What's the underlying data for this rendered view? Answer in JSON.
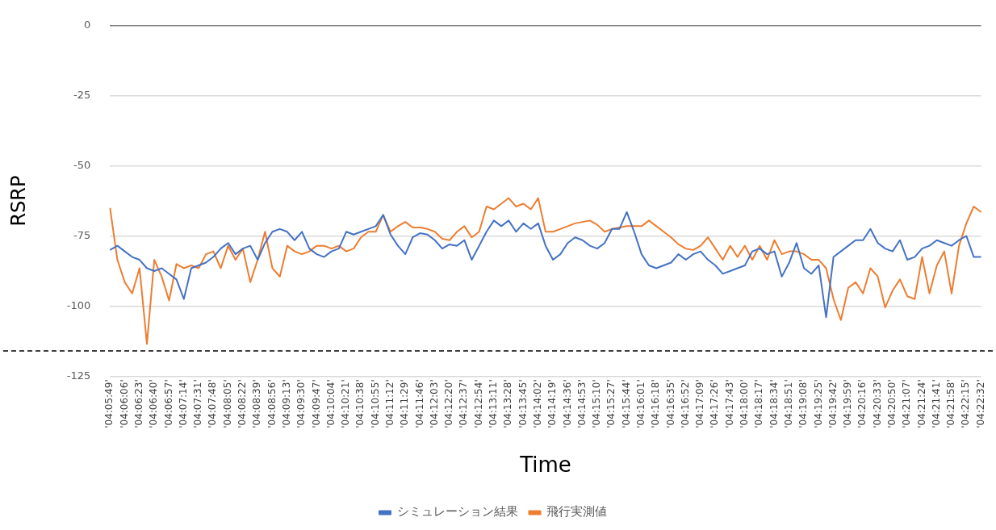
{
  "chart_data": {
    "type": "line",
    "xlabel": "Time",
    "ylabel": "RSRP",
    "categories": [
      "'04:05:49'",
      null,
      "'04:06:06'",
      null,
      "'04:06:23'",
      null,
      "'04:06:40'",
      null,
      "'04:06:57'",
      null,
      "'04:07:14'",
      null,
      "'04:07:31'",
      null,
      "'04:07:48'",
      null,
      "'04:08:05'",
      null,
      "'04:08:22'",
      null,
      "'04:08:39'",
      null,
      "'04:08:56'",
      null,
      "'04:09:13'",
      null,
      "'04:09:30'",
      null,
      "'04:09:47'",
      null,
      "'04:10:04'",
      null,
      "'04:10:21'",
      null,
      "'04:10:38'",
      null,
      "'04:10:55'",
      null,
      "'04:11:12'",
      null,
      "'04:11:29'",
      null,
      "'04:11:46'",
      null,
      "'04:12:03'",
      null,
      "'04:12:20'",
      null,
      "'04:12:37'",
      null,
      "'04:12:54'",
      null,
      "'04:13:11'",
      null,
      "'04:13:28'",
      null,
      "'04:13:45'",
      null,
      "'04:14:02'",
      null,
      "'04:14:19'",
      null,
      "'04:14:36'",
      null,
      "'04:14:53'",
      null,
      "'04:15:10'",
      null,
      "'04:15:27'",
      null,
      "'04:15:44'",
      null,
      "'04:16:01'",
      null,
      "'04:16:18'",
      null,
      "'04:16:35'",
      null,
      "'04:16:52'",
      null,
      "'04:17:09'",
      null,
      "'04:17:26'",
      null,
      "'04:17:43'",
      null,
      "'04:18:00'",
      null,
      "'04:18:17'",
      null,
      "'04:18:34'",
      null,
      "'04:18:51'",
      null,
      "'04:19:08'",
      null,
      "'04:19:25'",
      null,
      "'04:19:42'",
      null,
      "'04:19:59'",
      null,
      "'04:20:16'",
      null,
      "'04:20:33'",
      null,
      "'04:20:50'",
      null,
      "'04:21:07'",
      null,
      "'04:21:24'",
      null,
      "'04:21:41'",
      null,
      "'04:21:58'",
      null,
      "'04:22:15'",
      null,
      "'04:22:32'"
    ],
    "series": [
      {
        "name": "シミュレーション結果",
        "color": "#4472c4",
        "values": [
          -80,
          -78.5,
          -80.5,
          -82.5,
          -83.5,
          -86.5,
          -87.5,
          -86.5,
          -88.5,
          -90.5,
          -97.5,
          -86.5,
          -85.5,
          -84.5,
          -82.5,
          -79.5,
          -77.5,
          -81.5,
          -79.5,
          -78.5,
          -83.5,
          -77.5,
          -73.5,
          -72.5,
          -73.5,
          -76.5,
          -73.5,
          -79.5,
          -81.5,
          -82.5,
          -80.5,
          -79.5,
          -73.5,
          -74.5,
          -73.5,
          -72.5,
          -71.5,
          -67.5,
          -74.5,
          -78.5,
          -81.5,
          -75.5,
          -74,
          -74.5,
          -76.5,
          -79.5,
          -78,
          -78.5,
          -76.5,
          -83.5,
          -78.5,
          -73.5,
          -69.5,
          -71.5,
          -69.5,
          -73.5,
          -70.5,
          -72.5,
          -70.5,
          -78.5,
          -83.5,
          -81.5,
          -77.5,
          -75.5,
          -76.5,
          -78.5,
          -79.5,
          -77.5,
          -72.5,
          -72.5,
          -66.5,
          -73.5,
          -81.5,
          -85.5,
          -86.5,
          -85.5,
          -84.5,
          -81.5,
          -83.5,
          -81.5,
          -80.5,
          -83.5,
          -85.5,
          -88.5,
          -87.5,
          -86.5,
          -85.5,
          -80.5,
          -79.5,
          -81.5,
          -80.5,
          -89.5,
          -84.5,
          -77.5,
          -86.5,
          -88.5,
          -85.5,
          -104,
          -82.5,
          -80.5,
          -78.5,
          -76.5,
          -76.5,
          -72.5,
          -77.5,
          -79.5,
          -80.5,
          -76.5,
          -83.5,
          -82.5,
          -79.5,
          -78.5,
          -76.5,
          -77.5,
          -78.5,
          -76.5,
          -75,
          -82.5,
          -82.5
        ]
      },
      {
        "name": "飛行実測値",
        "color": "#ed7d31",
        "values": [
          -65,
          -83.5,
          -91.5,
          -95.5,
          -86.5,
          -113.5,
          -83.5,
          -89.5,
          -98,
          -85,
          -86.5,
          -85.5,
          -86.5,
          -81.5,
          -80.5,
          -86.5,
          -78.5,
          -83.5,
          -79.5,
          -91.5,
          -83.5,
          -73.5,
          -86.5,
          -89.5,
          -78.5,
          -80.5,
          -81.5,
          -80.5,
          -78.5,
          -78.5,
          -79.5,
          -78.5,
          -80.5,
          -79.5,
          -75.5,
          -73.5,
          -73.5,
          -67.5,
          -73.5,
          -71.5,
          -70,
          -72,
          -72,
          -72.5,
          -73.5,
          -76,
          -76.5,
          -73.5,
          -71.5,
          -75.5,
          -73.5,
          -64.5,
          -65.5,
          -63.5,
          -61.5,
          -64.5,
          -63.5,
          -65.5,
          -61.5,
          -73.5,
          -73.5,
          -72.5,
          -71.5,
          -70.5,
          -70,
          -69.5,
          -71,
          -73.5,
          -72.5,
          -72,
          -71.5,
          -71.5,
          -71.5,
          -69.5,
          -71.5,
          -73.5,
          -75.5,
          -78,
          -79.5,
          -80,
          -78.5,
          -75.5,
          -79.5,
          -83.5,
          -78.5,
          -82.5,
          -78.5,
          -83.5,
          -78.5,
          -83.5,
          -76.5,
          -81.5,
          -80.5,
          -80.5,
          -81.5,
          -83.5,
          -83.5,
          -86.5,
          -97.5,
          -105,
          -93.5,
          -91.5,
          -95.5,
          -86.5,
          -89.5,
          -100.5,
          -94.5,
          -90.5,
          -96.5,
          -97.5,
          -82.5,
          -95.5,
          -85.5,
          -80.5,
          -95.5,
          -78.5,
          -70.5,
          -64.5,
          -66.5
        ]
      }
    ],
    "ylim": [
      -125,
      0
    ],
    "yticks": [
      -125,
      -100,
      -75,
      -50,
      -25,
      0
    ],
    "grid": "y",
    "legend": "bottom",
    "ref_lines": [
      {
        "axis": "y",
        "value": -116,
        "color": "#000000",
        "line_style": "dashed"
      }
    ]
  }
}
